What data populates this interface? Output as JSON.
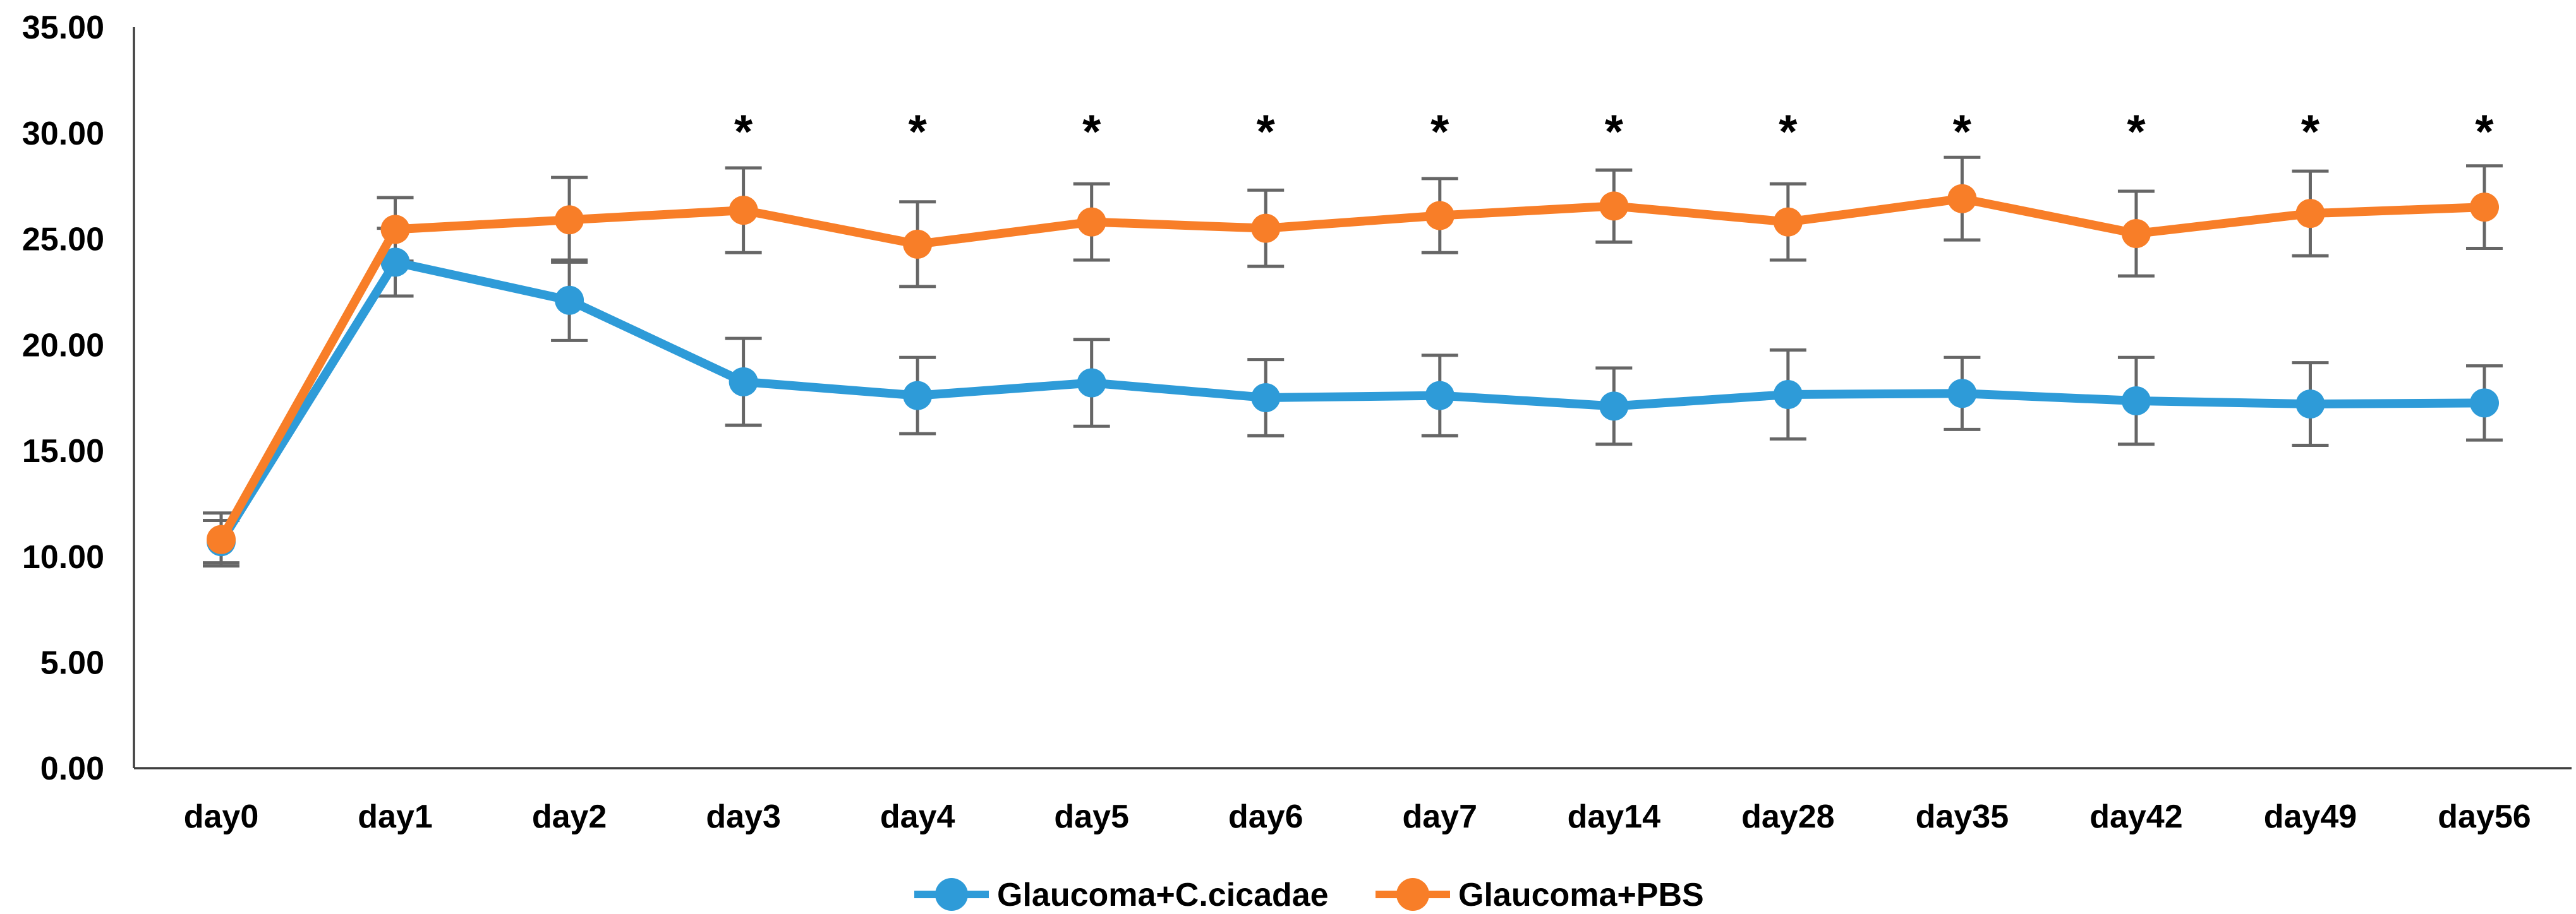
{
  "chart_data": {
    "type": "line",
    "title": "",
    "xlabel": "",
    "ylabel": "",
    "categories": [
      "day0",
      "day1",
      "day2",
      "day3",
      "day4",
      "day5",
      "day6",
      "day7",
      "day14",
      "day28",
      "day35",
      "day42",
      "day49",
      "day56"
    ],
    "series": [
      {
        "name": "Glaucoma+C.cicadae",
        "color": "#2E9BD8",
        "values": [
          10.7,
          23.9,
          22.1,
          18.25,
          17.6,
          18.2,
          17.5,
          17.6,
          17.1,
          17.65,
          17.7,
          17.35,
          17.2,
          17.25
        ],
        "errors": [
          1.0,
          1.6,
          1.9,
          2.05,
          1.8,
          2.05,
          1.8,
          1.9,
          1.8,
          2.1,
          1.7,
          2.05,
          1.95,
          1.75
        ]
      },
      {
        "name": "Glaucoma+PBS",
        "color": "#F87E28",
        "values": [
          10.8,
          25.45,
          25.9,
          26.35,
          24.75,
          25.8,
          25.5,
          26.1,
          26.55,
          25.8,
          26.9,
          25.25,
          26.2,
          26.5
        ],
        "errors": [
          1.25,
          1.5,
          2.0,
          2.0,
          2.0,
          1.8,
          1.8,
          1.75,
          1.7,
          1.8,
          1.95,
          2.0,
          2.0,
          1.95
        ]
      }
    ],
    "y_axis": {
      "min": 0,
      "max": 35,
      "step": 5,
      "tick_labels": [
        "0.00",
        "5.00",
        "10.00",
        "15.00",
        "20.00",
        "25.00",
        "30.00",
        "35.00"
      ]
    },
    "significance": {
      "symbol": "*",
      "marked_categories": [
        "day3",
        "day4",
        "day5",
        "day6",
        "day7",
        "day14",
        "day28",
        "day35",
        "day42",
        "day49",
        "day56"
      ],
      "y_value": 30.3
    },
    "legend": {
      "position": "bottom"
    },
    "grid": false,
    "ylim": [
      0,
      35
    ],
    "error_bar_color": "#666666",
    "axis_color": "#3f3f3f",
    "text_color": "#000000"
  }
}
